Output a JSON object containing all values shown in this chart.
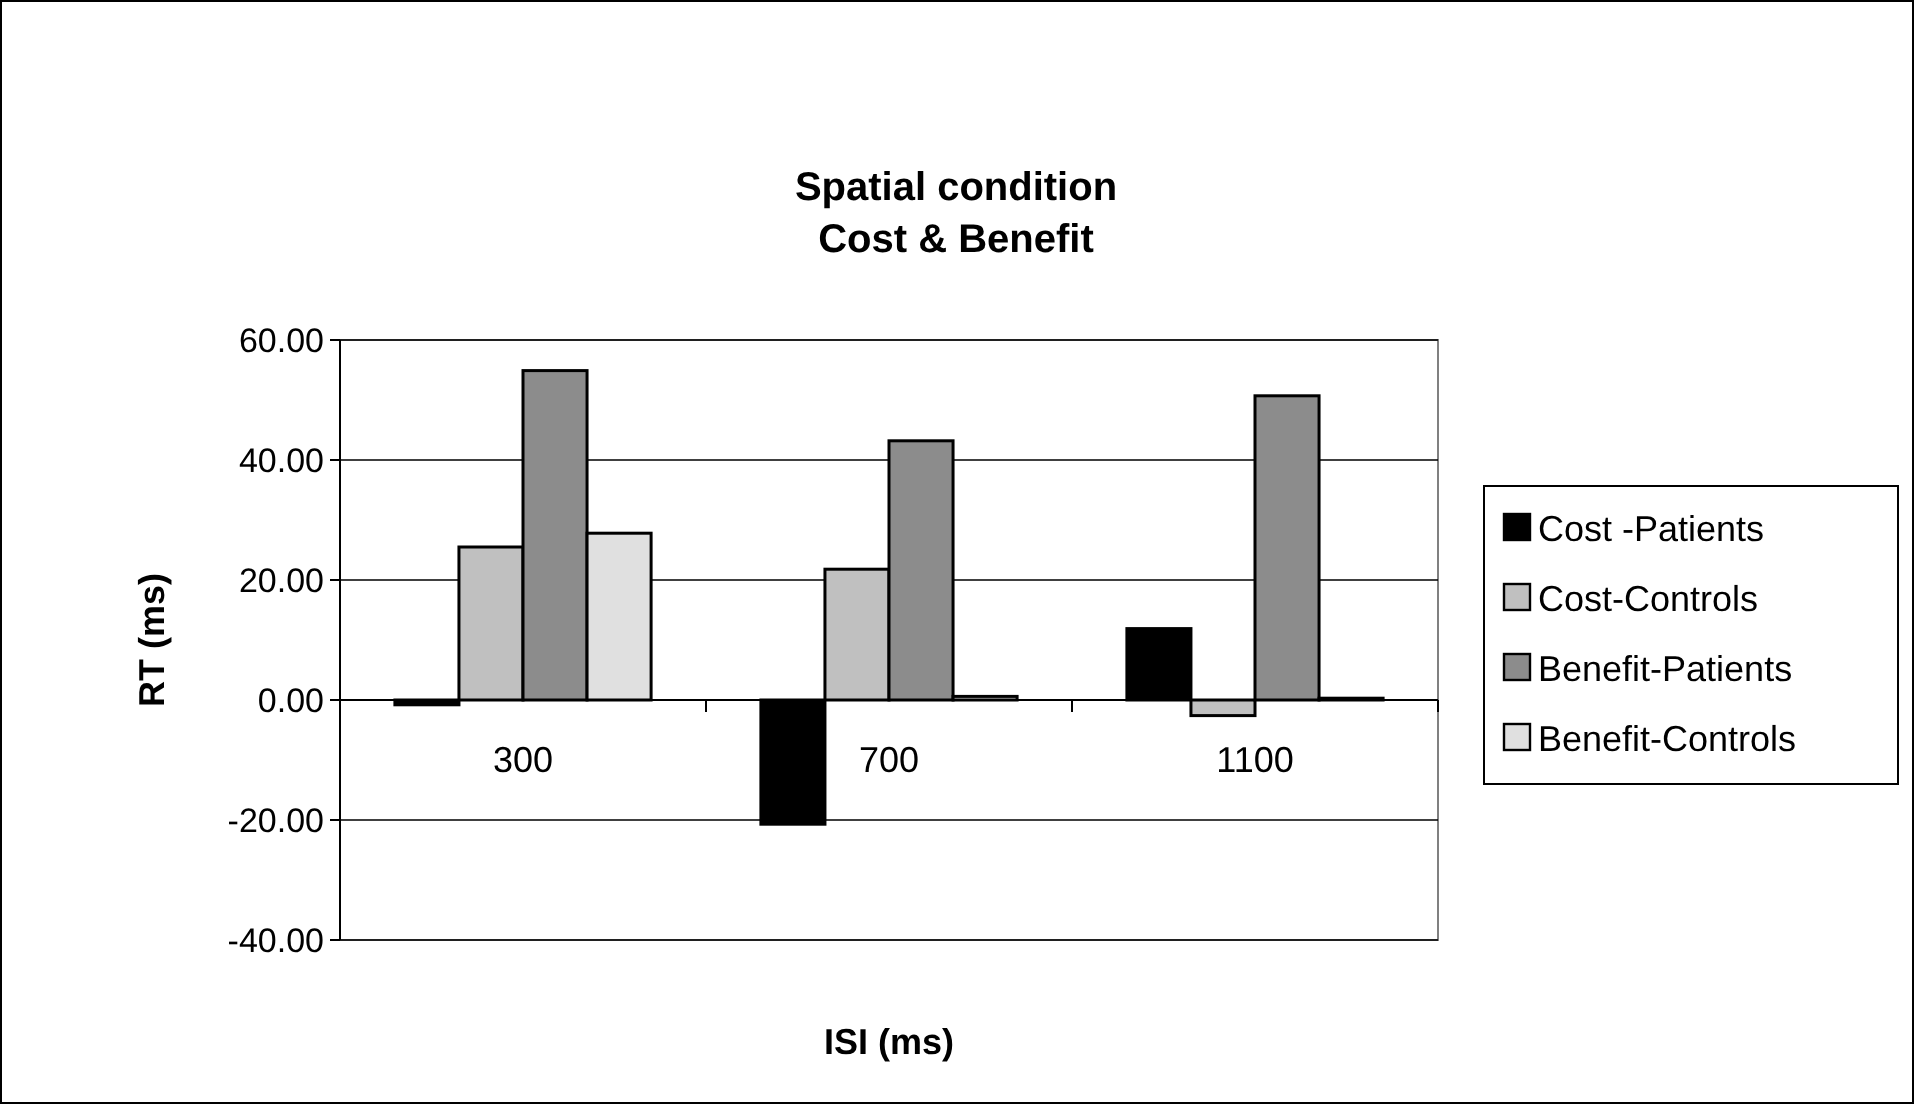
{
  "chart_data": {
    "type": "bar",
    "title": "Spatial condition\nCost & Benefit",
    "xlabel": "ISI (ms)",
    "ylabel": "RT (ms)",
    "categories": [
      "300",
      "700",
      "1100"
    ],
    "series": [
      {
        "name": "Cost -Patients",
        "color": "#000000",
        "values": [
          -0.8,
          -20.7,
          11.9
        ]
      },
      {
        "name": "Cost-Controls",
        "color": "#c0c0c0",
        "values": [
          25.5,
          21.8,
          -2.6
        ]
      },
      {
        "name": "Benefit-Patients",
        "color": "#8c8c8c",
        "values": [
          54.9,
          43.2,
          50.7
        ]
      },
      {
        "name": "Benefit-Controls",
        "color": "#e0e0e0",
        "values": [
          27.8,
          0.6,
          0.3
        ]
      }
    ],
    "ylim": [
      -40,
      60
    ],
    "yticks": [
      {
        "value": -40,
        "label": "-40.00"
      },
      {
        "value": -20,
        "label": "-20.00"
      },
      {
        "value": 0,
        "label": "0.00"
      },
      {
        "value": 20,
        "label": "20.00"
      },
      {
        "value": 40,
        "label": "40.00"
      },
      {
        "value": 60,
        "label": "60.00"
      }
    ],
    "grid": "y",
    "legend": "right"
  }
}
